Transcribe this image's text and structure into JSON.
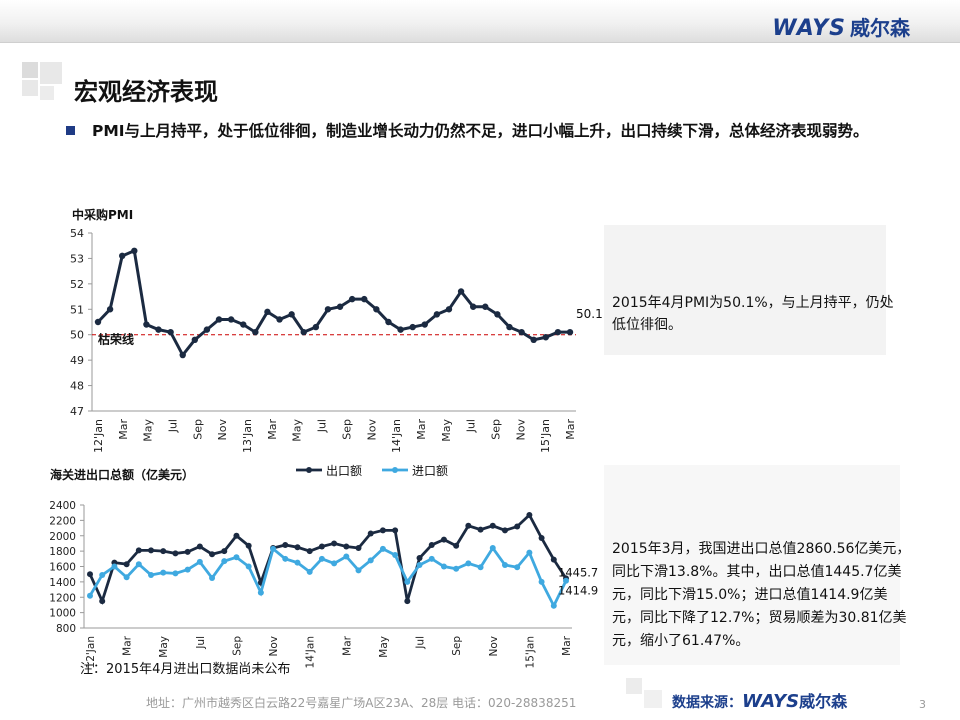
{
  "header": {
    "logo_text": "WAYS",
    "logo_cn": "威尔森"
  },
  "page": {
    "title": "宏观经济表现",
    "bullet": "PMI与上月持平，处于低位徘徊，制造业增长动力仍然不足，进口小幅上升，出口持续下滑，总体经济表现弱势。"
  },
  "notes": {
    "pmi": "2015年4月PMI为50.1%，与上月持平，仍处低位徘徊。",
    "trade": "2015年3月，我国进出口总值2860.56亿美元，同比下滑13.8%。其中，出口总值1445.7亿美元，同比下滑15.0%；进口总值1414.9亿美元，同比下降了12.7%；贸易顺差为30.81亿美元，缩小了61.47%。"
  },
  "footnote": "注：2015年4月进出口数据尚未公布",
  "footer": {
    "address": "地址：广州市越秀区白云路22号嘉星广场A区23A、28层   电话：020-28838251",
    "source_label": "数据来源：",
    "source_logo": "WAYS",
    "source_cn": "威尔森",
    "page_number": "3"
  },
  "colors": {
    "accent": "#1f3b85",
    "export": "#1b2a41",
    "import": "#3fa9e0",
    "ref": "#cc0000"
  },
  "chart_data": [
    {
      "type": "line",
      "title": "中采购PMI",
      "ylim": [
        47,
        54
      ],
      "yticks": [
        47,
        48,
        49,
        50,
        51,
        52,
        53,
        54
      ],
      "xtick_labels": [
        "12'Jan",
        "Mar",
        "May",
        "Jul",
        "Sep",
        "Nov",
        "13'Jan",
        "Mar",
        "May",
        "Jul",
        "Sep",
        "Nov",
        "14'Jan",
        "Mar",
        "May",
        "Jul",
        "Sep",
        "Nov",
        "15'Jan",
        "Mar"
      ],
      "reference_line": {
        "value": 50,
        "label": "枯荣线"
      },
      "series": [
        {
          "values": [
            50.5,
            51.0,
            53.1,
            53.3,
            50.4,
            50.2,
            50.1,
            49.2,
            49.8,
            50.2,
            50.6,
            50.6,
            50.4,
            50.1,
            50.9,
            50.6,
            50.8,
            50.1,
            50.3,
            51.0,
            51.1,
            51.4,
            51.4,
            51.0,
            50.5,
            50.2,
            50.3,
            50.4,
            50.8,
            51.0,
            51.7,
            51.1,
            51.1,
            50.8,
            50.3,
            50.1,
            49.8,
            49.9,
            50.1,
            50.1
          ]
        }
      ],
      "annotations": [
        {
          "text": "50.1"
        }
      ]
    },
    {
      "type": "line",
      "title": "海关进出口总额（亿美元）",
      "ylim": [
        800,
        2400
      ],
      "yticks": [
        800,
        1000,
        1200,
        1400,
        1600,
        1800,
        2000,
        2200,
        2400
      ],
      "xtick_labels": [
        "12'Jan",
        "Mar",
        "May",
        "Jul",
        "Sep",
        "Nov",
        "14'Jan",
        "Mar",
        "May",
        "Jul",
        "Sep",
        "Nov",
        "15'Jan",
        "Mar"
      ],
      "series": [
        {
          "name": "出口额",
          "values": [
            1500,
            1150,
            1650,
            1630,
            1810,
            1810,
            1800,
            1770,
            1790,
            1860,
            1760,
            1800,
            2000,
            1870,
            1390,
            1840,
            1880,
            1850,
            1800,
            1860,
            1900,
            1860,
            1840,
            2030,
            2070,
            2070,
            1150,
            1710,
            1880,
            1950,
            1870,
            2130,
            2080,
            2130,
            2070,
            2120,
            2270,
            1970,
            1690,
            1445.7
          ]
        },
        {
          "name": "进口额",
          "values": [
            1220,
            1490,
            1600,
            1460,
            1630,
            1490,
            1520,
            1510,
            1560,
            1660,
            1450,
            1670,
            1720,
            1600,
            1260,
            1830,
            1700,
            1650,
            1530,
            1700,
            1640,
            1730,
            1550,
            1680,
            1830,
            1750,
            1400,
            1620,
            1700,
            1600,
            1570,
            1640,
            1590,
            1840,
            1620,
            1590,
            1780,
            1400,
            1090,
            1414.9
          ]
        }
      ],
      "annotations": [
        {
          "text": "1445.7"
        },
        {
          "text": "1414.9"
        }
      ]
    }
  ]
}
